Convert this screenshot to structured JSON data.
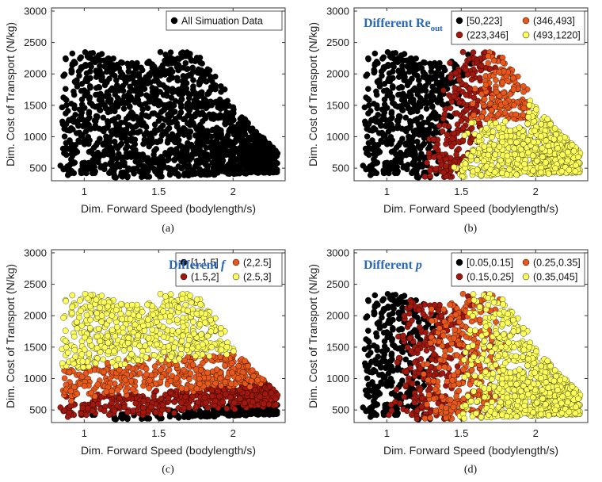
{
  "figure": {
    "captions": [
      "(a)",
      "(b)",
      "(c)",
      "(d)"
    ]
  },
  "chart_data": [
    {
      "type": "scatter",
      "title": "",
      "xlabel": "Dim. Forward Speed (bodylength/s)",
      "ylabel": "Dim. Cost of Transport (N/kg)",
      "xlim": [
        0.78,
        2.35
      ],
      "ylim": [
        300,
        3050
      ],
      "xticks": [
        "1",
        "1.5",
        "2"
      ],
      "yticks": [
        "500",
        "1000",
        "1500",
        "2000",
        "2500",
        "3000"
      ],
      "annotation": {
        "main": "",
        "sub": ""
      },
      "legend_position": "top-right",
      "series": [
        {
          "name": "All Simuation Data",
          "color": "#000000",
          "region": "all"
        }
      ]
    },
    {
      "type": "scatter",
      "title": "",
      "xlabel": "Dim. Forward Speed (bodylength/s)",
      "ylabel": "Dim. Cost of Transport (N/kg)",
      "xlim": [
        0.78,
        2.35
      ],
      "ylim": [
        300,
        3050
      ],
      "xticks": [
        "1",
        "1.5",
        "2"
      ],
      "yticks": [
        "500",
        "1000",
        "1500",
        "2000",
        "2500",
        "3000"
      ],
      "annotation": {
        "main": "Different Re",
        "sub": "out"
      },
      "legend_position": "top-right",
      "series": [
        {
          "name": "[50,223]",
          "color": "#000000",
          "region": "re1"
        },
        {
          "name": "(223,346]",
          "color": "#a0180e",
          "region": "re2"
        },
        {
          "name": "(346,493]",
          "color": "#e8581c",
          "region": "re3"
        },
        {
          "name": "(493,1220]",
          "color": "#ffff5c",
          "region": "re4"
        }
      ]
    },
    {
      "type": "scatter",
      "title": "",
      "xlabel": "Dim. Forward Speed (bodylength/s)",
      "ylabel": "Dim. Cost of Transport (N/kg)",
      "xlim": [
        0.78,
        2.35
      ],
      "ylim": [
        300,
        3050
      ],
      "xticks": [
        "1",
        "1.5",
        "2"
      ],
      "yticks": [
        "500",
        "1000",
        "1500",
        "2000",
        "2500",
        "3000"
      ],
      "annotation": {
        "main": "Different ",
        "italic": "f"
      },
      "legend_position": "top-right",
      "series": [
        {
          "name": "[1,1.5]",
          "color": "#000000",
          "region": "f1"
        },
        {
          "name": "(1.5,2]",
          "color": "#a0180e",
          "region": "f2"
        },
        {
          "name": "(2,2.5]",
          "color": "#e8581c",
          "region": "f3"
        },
        {
          "name": "(2.5,3]",
          "color": "#ffff5c",
          "region": "f4"
        }
      ]
    },
    {
      "type": "scatter",
      "title": "",
      "xlabel": "Dim. Forward Speed (bodylength/s)",
      "ylabel": "Dim. Cost of Transport (N/kg)",
      "xlim": [
        0.78,
        2.35
      ],
      "ylim": [
        300,
        3050
      ],
      "xticks": [
        "1",
        "1.5",
        "2"
      ],
      "yticks": [
        "500",
        "1000",
        "1500",
        "2000",
        "2500",
        "3000"
      ],
      "annotation": {
        "main": "Different ",
        "italic": "p"
      },
      "legend_position": "top-right",
      "series": [
        {
          "name": "[0.05,0.15]",
          "color": "#000000",
          "region": "p1"
        },
        {
          "name": "(0.15,0.25]",
          "color": "#a0180e",
          "region": "p2"
        },
        {
          "name": "(0.25,0.35]",
          "color": "#e8581c",
          "region": "p3"
        },
        {
          "name": "(0.35,045]",
          "color": "#ffff5c",
          "region": "p4"
        }
      ]
    }
  ]
}
